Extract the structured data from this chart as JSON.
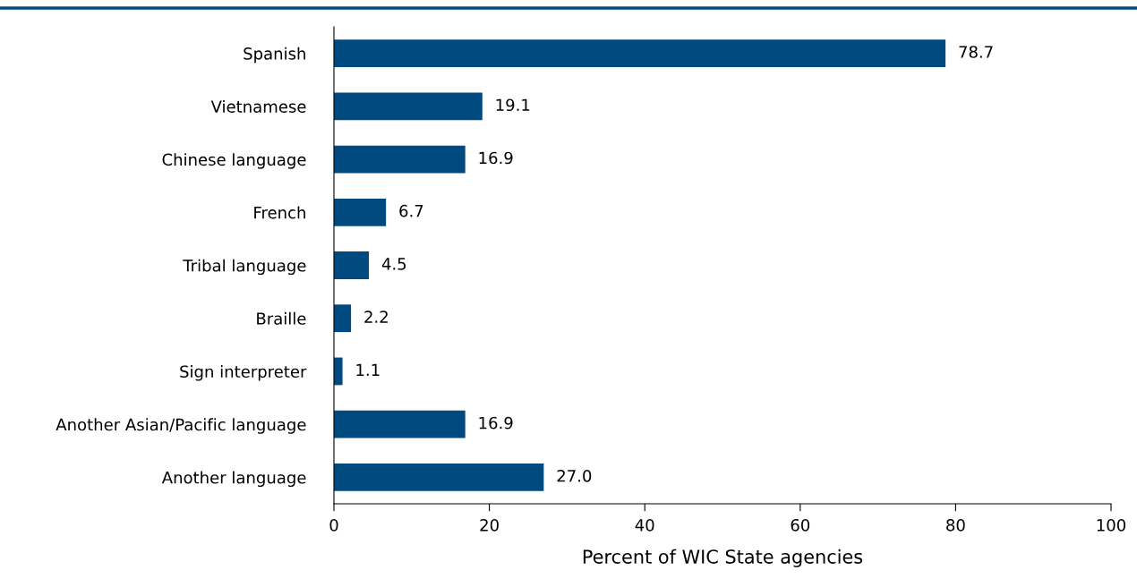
{
  "chart_data": {
    "type": "bar",
    "orientation": "horizontal",
    "xlabel": "Percent of WIC State agencies",
    "categories": [
      "Spanish",
      "Vietnamese",
      "Chinese language",
      "French",
      "Tribal language",
      "Braille",
      "Sign interpreter",
      "Another Asian/Pacific language",
      "Another language"
    ],
    "values": [
      78.7,
      19.1,
      16.9,
      6.7,
      4.5,
      2.2,
      1.1,
      16.9,
      27.0
    ],
    "value_labels": [
      "78.7",
      "19.1",
      "16.9",
      "6.7",
      "4.5",
      "2.2",
      "1.1",
      "16.9",
      "27.0"
    ],
    "color": "#004a80",
    "xlim": [
      0,
      100
    ],
    "xticks": [
      0,
      20,
      40,
      60,
      80,
      100
    ],
    "grid": false,
    "legend": false
  }
}
